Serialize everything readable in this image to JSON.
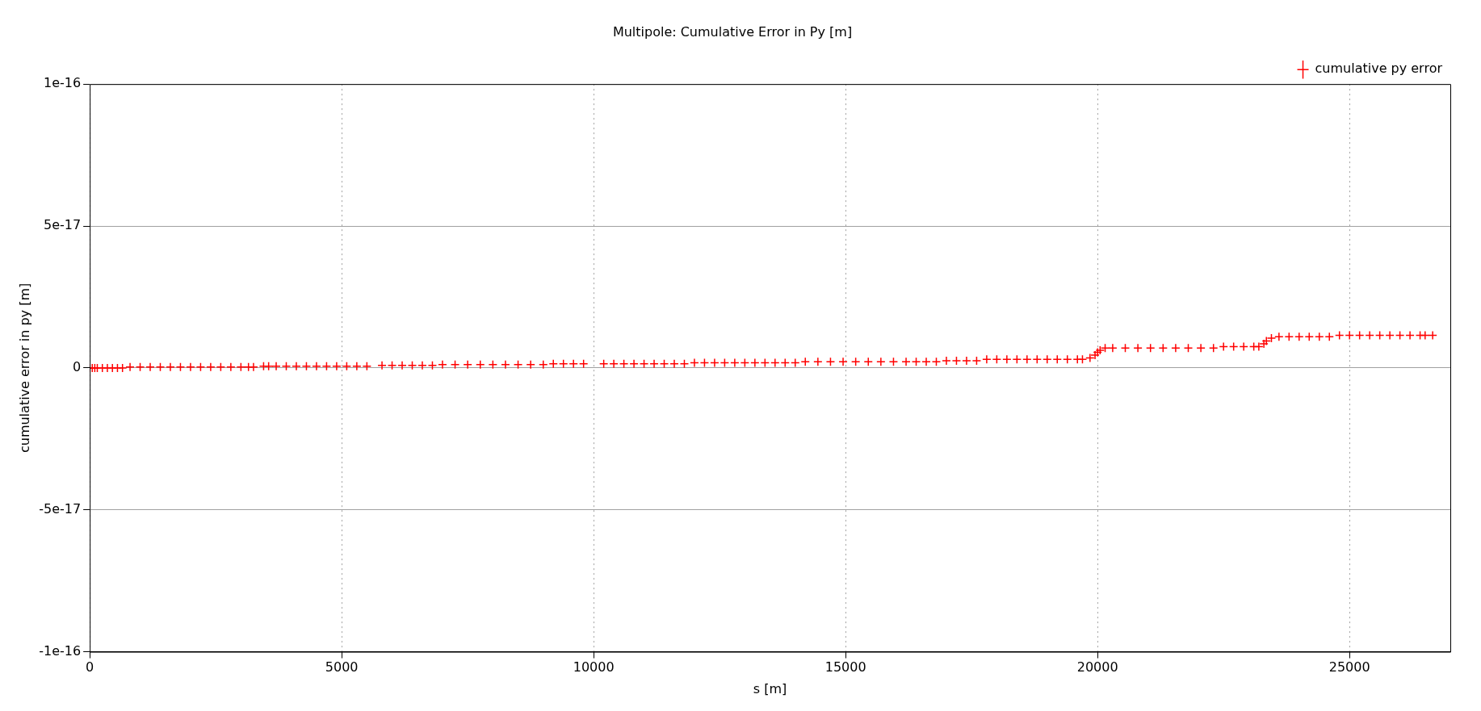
{
  "chart_data": {
    "type": "scatter",
    "title": "Multipole: Cumulative Error in Py [m]",
    "xlabel": "s [m]",
    "ylabel": "cumulative error in py [m]",
    "xlim": [
      0,
      27000
    ],
    "xticks": [
      0,
      5000,
      10000,
      15000,
      20000,
      25000
    ],
    "ylim": [
      -1e-16,
      1e-16
    ],
    "yticks": [
      {
        "value": -1e-16,
        "label": "-1e-16"
      },
      {
        "value": -5e-17,
        "label": "-5e-17"
      },
      0,
      {
        "value": 5e-17,
        "label": "5e-17"
      },
      {
        "value": 1e-16,
        "label": "1e-16"
      }
    ],
    "grid": true,
    "legend": "top right",
    "marker": "cross",
    "series": [
      {
        "name": "cumulative py error",
        "color": "#ff0000",
        "x": [
          0,
          50,
          100,
          150,
          250,
          350,
          450,
          550,
          650,
          800,
          1000,
          1200,
          1400,
          1600,
          1800,
          2000,
          2200,
          2400,
          2600,
          2800,
          3000,
          3150,
          3250,
          3450,
          3550,
          3700,
          3900,
          4100,
          4300,
          4500,
          4700,
          4900,
          5100,
          5300,
          5500,
          5800,
          6000,
          6200,
          6400,
          6600,
          6800,
          7000,
          7250,
          7500,
          7750,
          8000,
          8250,
          8500,
          8750,
          9000,
          9200,
          9400,
          9600,
          9800,
          10200,
          10400,
          10600,
          10800,
          11000,
          11200,
          11400,
          11600,
          11800,
          12000,
          12200,
          12400,
          12600,
          12800,
          13000,
          13200,
          13400,
          13600,
          13800,
          14000,
          14200,
          14450,
          14700,
          14950,
          15200,
          15450,
          15700,
          15950,
          16200,
          16400,
          16600,
          16800,
          17000,
          17200,
          17400,
          17600,
          17800,
          18000,
          18200,
          18400,
          18600,
          18800,
          19000,
          19200,
          19400,
          19600,
          19700,
          19850,
          19950,
          20000,
          20050,
          20150,
          20300,
          20550,
          20800,
          21050,
          21300,
          21550,
          21800,
          22050,
          22300,
          22500,
          22700,
          22900,
          23100,
          23200,
          23300,
          23350,
          23450,
          23600,
          23800,
          24000,
          24200,
          24400,
          24600,
          24800,
          25000,
          25200,
          25400,
          25600,
          25800,
          26000,
          26200,
          26400,
          26500,
          26650
        ],
        "values": [
          0,
          0,
          0,
          0,
          0,
          0,
          0,
          0,
          0,
          3e-19,
          3e-19,
          3e-19,
          3e-19,
          3e-19,
          3e-19,
          3e-19,
          3e-19,
          3e-19,
          3e-19,
          3e-19,
          3e-19,
          3e-19,
          3e-19,
          6e-19,
          6e-19,
          6e-19,
          6e-19,
          6e-19,
          6e-19,
          6e-19,
          6e-19,
          6e-19,
          6e-19,
          6e-19,
          6e-19,
          9e-19,
          9e-19,
          9e-19,
          9e-19,
          9e-19,
          9e-19,
          1.2e-18,
          1.2e-18,
          1.2e-18,
          1.2e-18,
          1.2e-18,
          1.2e-18,
          1.2e-18,
          1.2e-18,
          1.2e-18,
          1.5e-18,
          1.5e-18,
          1.5e-18,
          1.5e-18,
          1.5e-18,
          1.5e-18,
          1.5e-18,
          1.5e-18,
          1.5e-18,
          1.5e-18,
          1.5e-18,
          1.5e-18,
          1.5e-18,
          1.8e-18,
          1.8e-18,
          1.8e-18,
          1.8e-18,
          1.8e-18,
          1.8e-18,
          1.8e-18,
          1.8e-18,
          1.8e-18,
          1.8e-18,
          1.8e-18,
          2.2e-18,
          2.2e-18,
          2.2e-18,
          2.2e-18,
          2.2e-18,
          2.2e-18,
          2.2e-18,
          2.2e-18,
          2.2e-18,
          2.2e-18,
          2.2e-18,
          2.2e-18,
          2.5e-18,
          2.5e-18,
          2.5e-18,
          2.5e-18,
          3e-18,
          3e-18,
          3e-18,
          3e-18,
          3e-18,
          3e-18,
          3e-18,
          3e-18,
          3e-18,
          3e-18,
          3e-18,
          3.5e-18,
          4.5e-18,
          5.5e-18,
          6.2e-18,
          7e-18,
          7e-18,
          7e-18,
          7e-18,
          7e-18,
          7e-18,
          7e-18,
          7e-18,
          7e-18,
          7e-18,
          7.5e-18,
          7.5e-18,
          7.5e-18,
          7.5e-18,
          7.5e-18,
          8.5e-18,
          9.5e-18,
          1.05e-17,
          1.1e-17,
          1.1e-17,
          1.1e-17,
          1.1e-17,
          1.1e-17,
          1.1e-17,
          1.15e-17,
          1.15e-17,
          1.15e-17,
          1.15e-17,
          1.15e-17,
          1.15e-17,
          1.15e-17,
          1.15e-17,
          1.15e-17,
          1.15e-17,
          1.15e-17
        ]
      }
    ]
  }
}
